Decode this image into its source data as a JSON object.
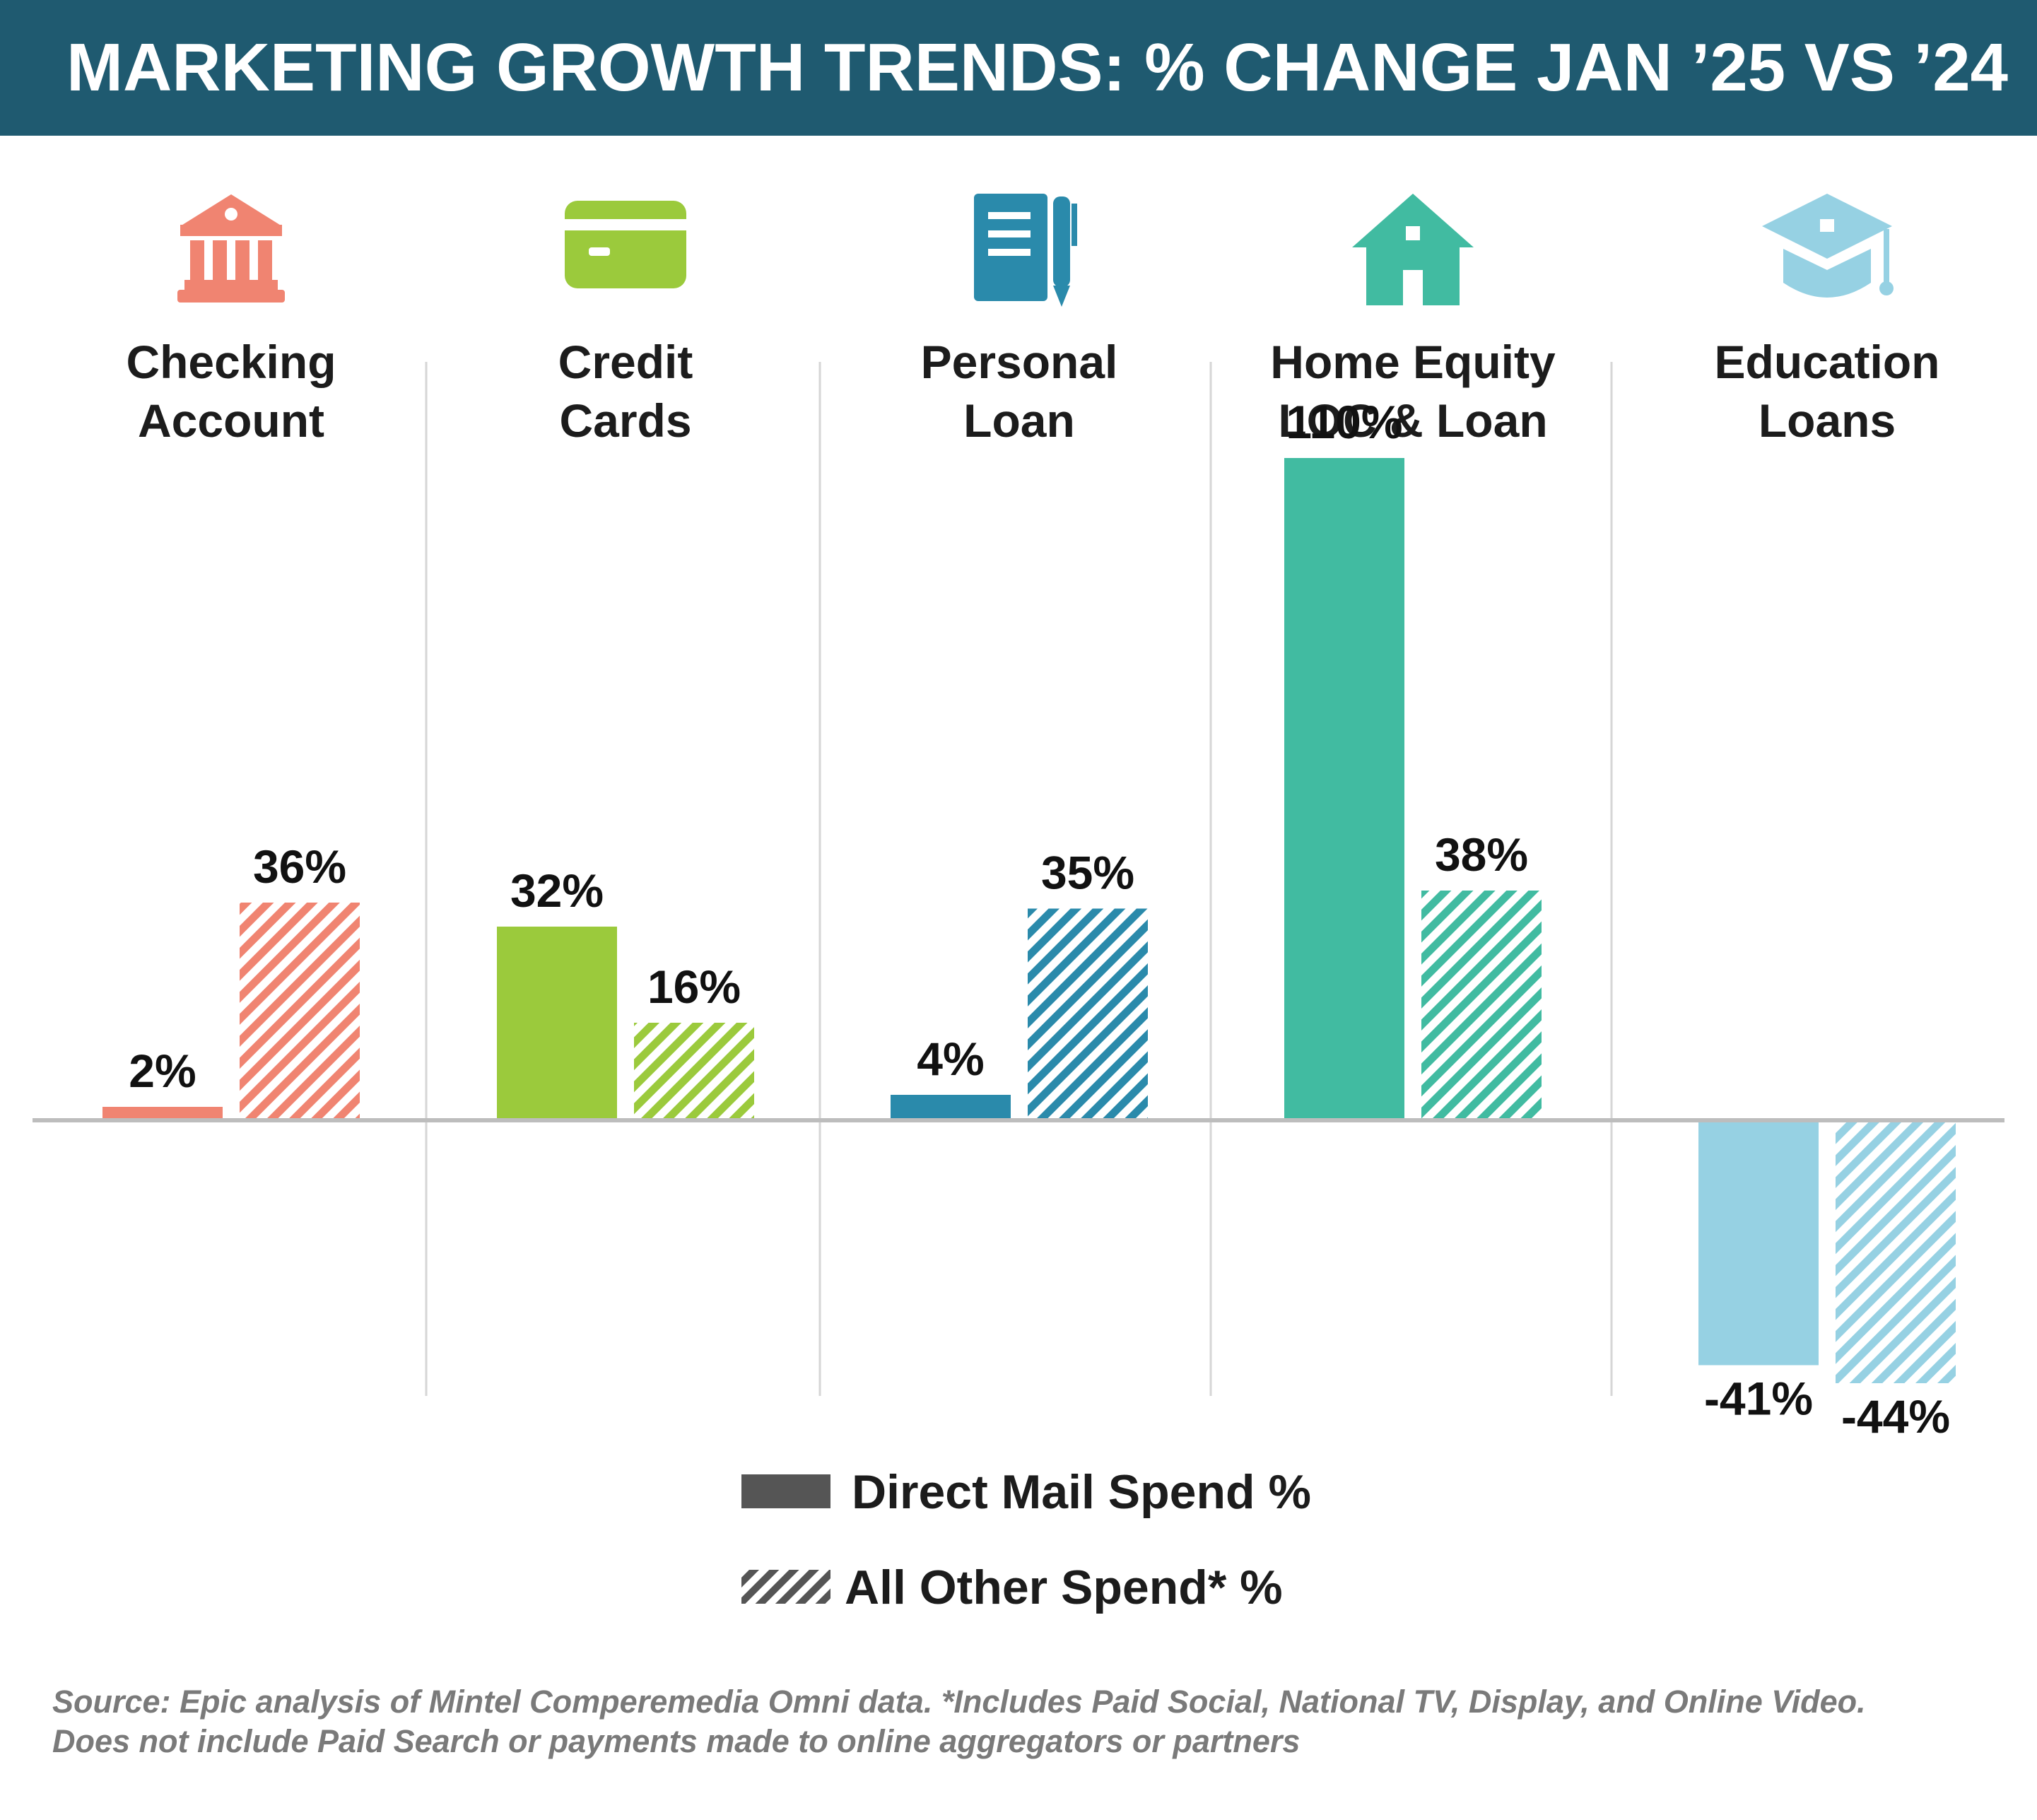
{
  "header": {
    "title": "MARKETING GROWTH TRENDS: % CHANGE JAN ’25 VS ’24"
  },
  "chart_data": {
    "type": "bar",
    "title": "MARKETING GROWTH TRENDS: % CHANGE JAN ’25 VS ’24",
    "categories": [
      "Checking Account",
      "Credit Cards",
      "Personal Loan",
      "Home Equity LOC & Loan",
      "Education Loans"
    ],
    "category_label_lines": [
      [
        "Checking",
        "Account"
      ],
      [
        "Credit",
        "Cards"
      ],
      [
        "Personal",
        "Loan"
      ],
      [
        "Home Equity",
        "LOC & Loan"
      ],
      [
        "Education",
        "Loans"
      ]
    ],
    "category_icons": [
      "bank-icon",
      "credit-card-icon",
      "notepad-pen-icon",
      "house-icon",
      "graduation-cap-icon"
    ],
    "category_colors": [
      "#f08471",
      "#9bca3c",
      "#2a8aab",
      "#41bba1",
      "#96d1e3"
    ],
    "series": [
      {
        "name": "Direct Mail Spend %",
        "values": [
          2,
          32,
          4,
          110,
          -41
        ],
        "labels": [
          "2%",
          "32%",
          "4%",
          "110%",
          "-41%"
        ],
        "style": "solid"
      },
      {
        "name": "All Other Spend* %",
        "values": [
          36,
          16,
          35,
          38,
          -44
        ],
        "labels": [
          "36%",
          "16%",
          "35%",
          "38%",
          "-44%"
        ],
        "style": "hatched"
      }
    ],
    "ylim": [
      -52,
      120
    ],
    "grid": false,
    "legend": {
      "placement": "bottom-center",
      "swatch_color": "#555555"
    }
  },
  "footer": {
    "source_line1": "Source: Epic analysis of Mintel Comperemedia Omni data. *Includes Paid Social, National TV, Display, and Online Video.",
    "source_line2": "Does not include Paid Search or payments made to online aggregators or partners"
  }
}
